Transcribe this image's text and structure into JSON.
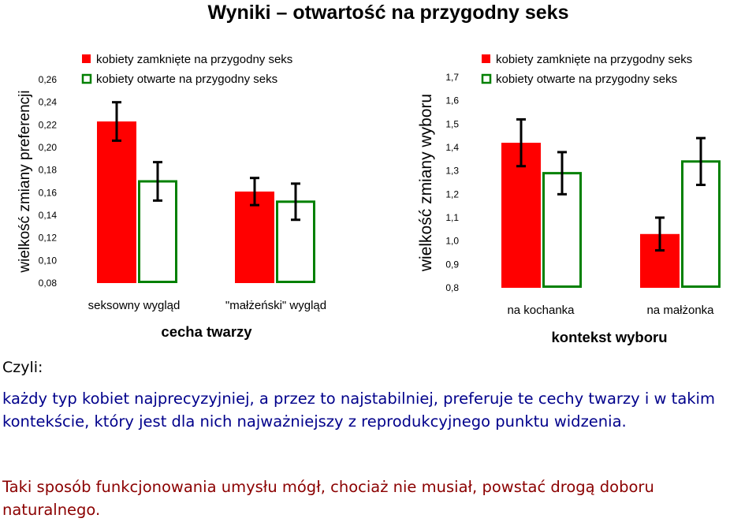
{
  "page": {
    "title": "Wyniki – otwartość na przygodny seks",
    "czyli": "Czyli:",
    "explanation": "każdy typ kobiet najprecyzyjniej, a przez to najstabilniej, preferuje te cechy twarzy i w takim kontekście, który jest dla nich najważniejszy z reprodukcyjnego punktu widzenia.",
    "conclusion": "Taki sposób funkcjonowania umysłu mógł, chociaż nie musiał, powstać drogą doboru naturalnego."
  },
  "colors": {
    "closed": "#ff0000",
    "open_outline": "#008000",
    "error_bar": "#000000"
  },
  "chart_data": [
    {
      "type": "bar",
      "ylabel": "wielkość zmiany preferencji",
      "xlabel": "cecha twarzy",
      "categories": [
        "seksowny wygląd",
        "\"małżeński\" wygląd"
      ],
      "ylim": [
        0.08,
        0.26
      ],
      "yticks": [
        0.08,
        0.1,
        0.12,
        0.14,
        0.16,
        0.18,
        0.2,
        0.22,
        0.24,
        0.26
      ],
      "ytick_labels": [
        "0,08",
        "0,10",
        "0,12",
        "0,14",
        "0,16",
        "0,18",
        "0,20",
        "0,22",
        "0,24",
        "0,26"
      ],
      "legend_position": "top-left",
      "series": [
        {
          "name": "kobiety zamknięte na przygodny seks",
          "style": "filled-red",
          "values": [
            0.223,
            0.161
          ],
          "errors": [
            0.017,
            0.012
          ]
        },
        {
          "name": "kobiety otwarte na przygodny seks",
          "style": "outline-green",
          "values": [
            0.17,
            0.152
          ],
          "errors": [
            0.017,
            0.016
          ]
        }
      ]
    },
    {
      "type": "bar",
      "ylabel": "wielkość zmiany wyboru",
      "xlabel": "kontekst wyboru",
      "categories": [
        "na kochanka",
        "na małżonka"
      ],
      "ylim": [
        0.8,
        1.7
      ],
      "yticks": [
        0.8,
        0.9,
        1.0,
        1.1,
        1.2,
        1.3,
        1.4,
        1.5,
        1.6,
        1.7
      ],
      "ytick_labels": [
        "0,8",
        "0,9",
        "1,0",
        "1,1",
        "1,2",
        "1,3",
        "1,4",
        "1,5",
        "1,6",
        "1,7"
      ],
      "legend_position": "top-right",
      "series": [
        {
          "name": "kobiety zamknięte na przygodny seks",
          "style": "filled-red",
          "values": [
            1.42,
            1.03
          ],
          "errors": [
            0.1,
            0.07
          ]
        },
        {
          "name": "kobiety otwarte na przygodny seks",
          "style": "outline-green",
          "values": [
            1.29,
            1.34
          ],
          "errors": [
            0.09,
            0.1
          ]
        }
      ]
    }
  ]
}
